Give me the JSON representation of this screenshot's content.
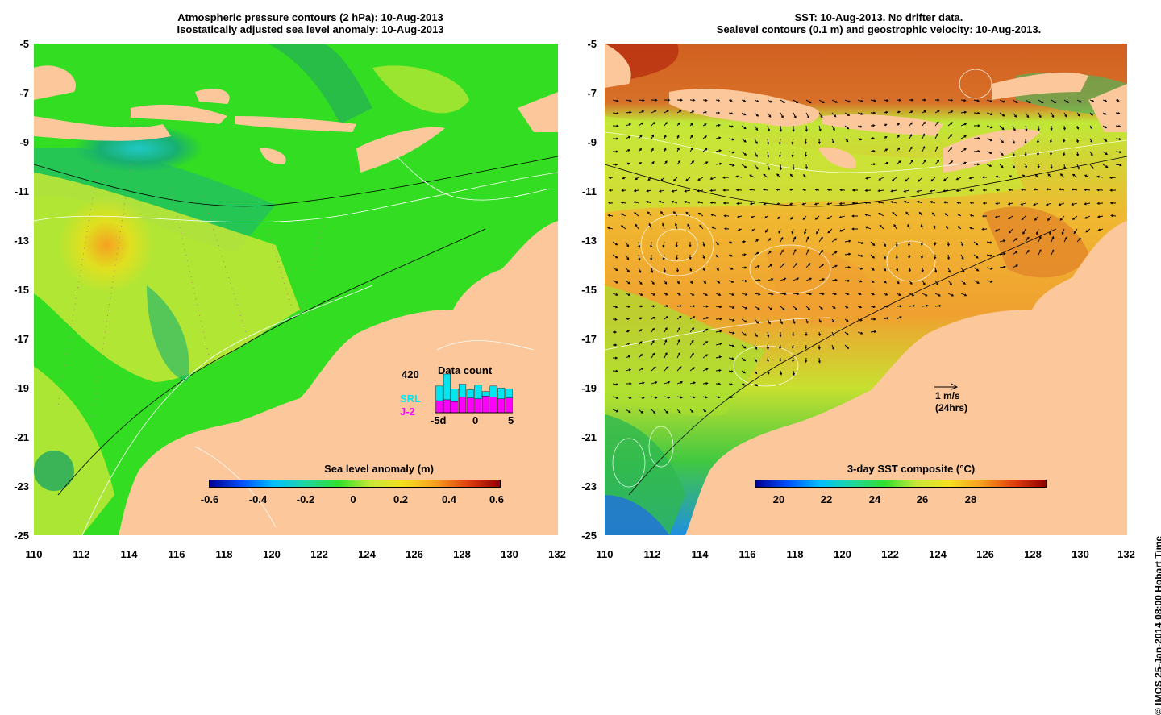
{
  "left_panel": {
    "title_line1": "Atmospheric pressure contours (2 hPa): 10-Aug-2013",
    "title_line2": "Isostatically adjusted sea level anomaly: 10-Aug-2013",
    "colorbar": {
      "title": "Sea level anomaly (m)",
      "ticks": [
        "-0.6",
        "-0.4",
        "-0.2",
        "0",
        "0.2",
        "0.4",
        "0.6"
      ]
    },
    "inset": {
      "title": "Data count",
      "max_label": "420",
      "series": [
        "SRL",
        "J-2"
      ],
      "series_colors": [
        "#00e5f0",
        "#ff00ff"
      ],
      "x_ticks": [
        "-5d",
        "0",
        "5"
      ],
      "chart_data": {
        "type": "bar",
        "title": "Data count",
        "x": [
          -5,
          -4,
          -3,
          -2,
          -1,
          0,
          1,
          2,
          3,
          4
        ],
        "series": [
          {
            "name": "SRL",
            "values": [
              290,
              420,
              260,
              310,
              250,
              300,
              230,
              290,
              270,
              260
            ]
          },
          {
            "name": "J-2",
            "values": [
              130,
              140,
              120,
              170,
              160,
              150,
              180,
              170,
              150,
              160
            ]
          }
        ],
        "ylim": [
          0,
          420
        ]
      }
    }
  },
  "right_panel": {
    "title_line1": "SST: 10-Aug-2013. No drifter data.",
    "title_line2": "Sealevel contours (0.1 m) and geostrophic velocity: 10-Aug-2013.",
    "colorbar": {
      "title": "3-day SST composite (°C)",
      "ticks": [
        "20",
        "22",
        "24",
        "26",
        "28"
      ]
    },
    "velocity_legend": {
      "speed_label": "1 m/s",
      "time_label": "(24hrs)"
    }
  },
  "axes": {
    "y_ticks": [
      "-5",
      "-7",
      "-9",
      "-11",
      "-13",
      "-15",
      "-17",
      "-19",
      "-21",
      "-23",
      "-25"
    ],
    "x_ticks": [
      "110",
      "112",
      "114",
      "116",
      "118",
      "120",
      "122",
      "124",
      "126",
      "128",
      "130",
      "132"
    ]
  },
  "credit": "© IMOS 25-Jan-2014 08:00 Hobart Time",
  "colors": {
    "land": "#fcc89b",
    "ssl_ocean": "#33dd22",
    "sst_ocean": "#f0a030"
  }
}
